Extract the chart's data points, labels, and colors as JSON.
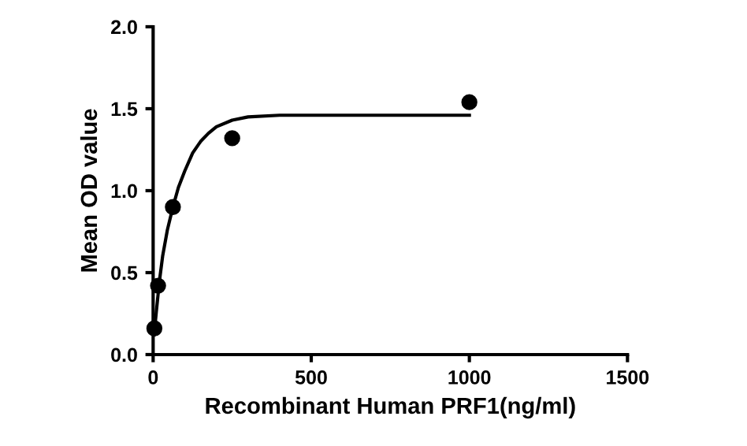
{
  "chart_data": {
    "type": "scatter",
    "xlabel": "Recombinant Human PRF1(ng/ml)",
    "ylabel": "Mean OD value",
    "xlim": [
      0,
      1500
    ],
    "xticks": [
      0,
      500,
      1000,
      1500
    ],
    "ylim": [
      0,
      2.0
    ],
    "yticks": [
      {
        "value": 0,
        "label": "0.0"
      },
      {
        "value": 0.5,
        "label": "0.5"
      },
      {
        "value": 1.0,
        "label": "1.0"
      },
      {
        "value": 1.5,
        "label": "1.5"
      },
      {
        "value": 2.0,
        "label": "2.0"
      }
    ],
    "grid": false,
    "legend": false,
    "series": [
      {
        "marker": "circle",
        "color": "#000000",
        "x": [
          3.9,
          15.6,
          62.5,
          250,
          1000
        ],
        "values": [
          0.16,
          0.42,
          0.9,
          1.32,
          1.54
        ]
      },
      {
        "type": "line",
        "marker": "none",
        "color": "#000000",
        "line_style": "solid",
        "x": [
          3,
          10,
          20,
          30,
          45,
          62.5,
          80,
          100,
          125,
          150,
          175,
          200,
          250,
          300,
          400,
          500,
          700,
          1000
        ],
        "values": [
          0.12,
          0.26,
          0.45,
          0.6,
          0.76,
          0.9,
          1.02,
          1.12,
          1.23,
          1.3,
          1.35,
          1.39,
          1.43,
          1.45,
          1.46,
          1.46,
          1.46,
          1.46
        ]
      }
    ]
  }
}
